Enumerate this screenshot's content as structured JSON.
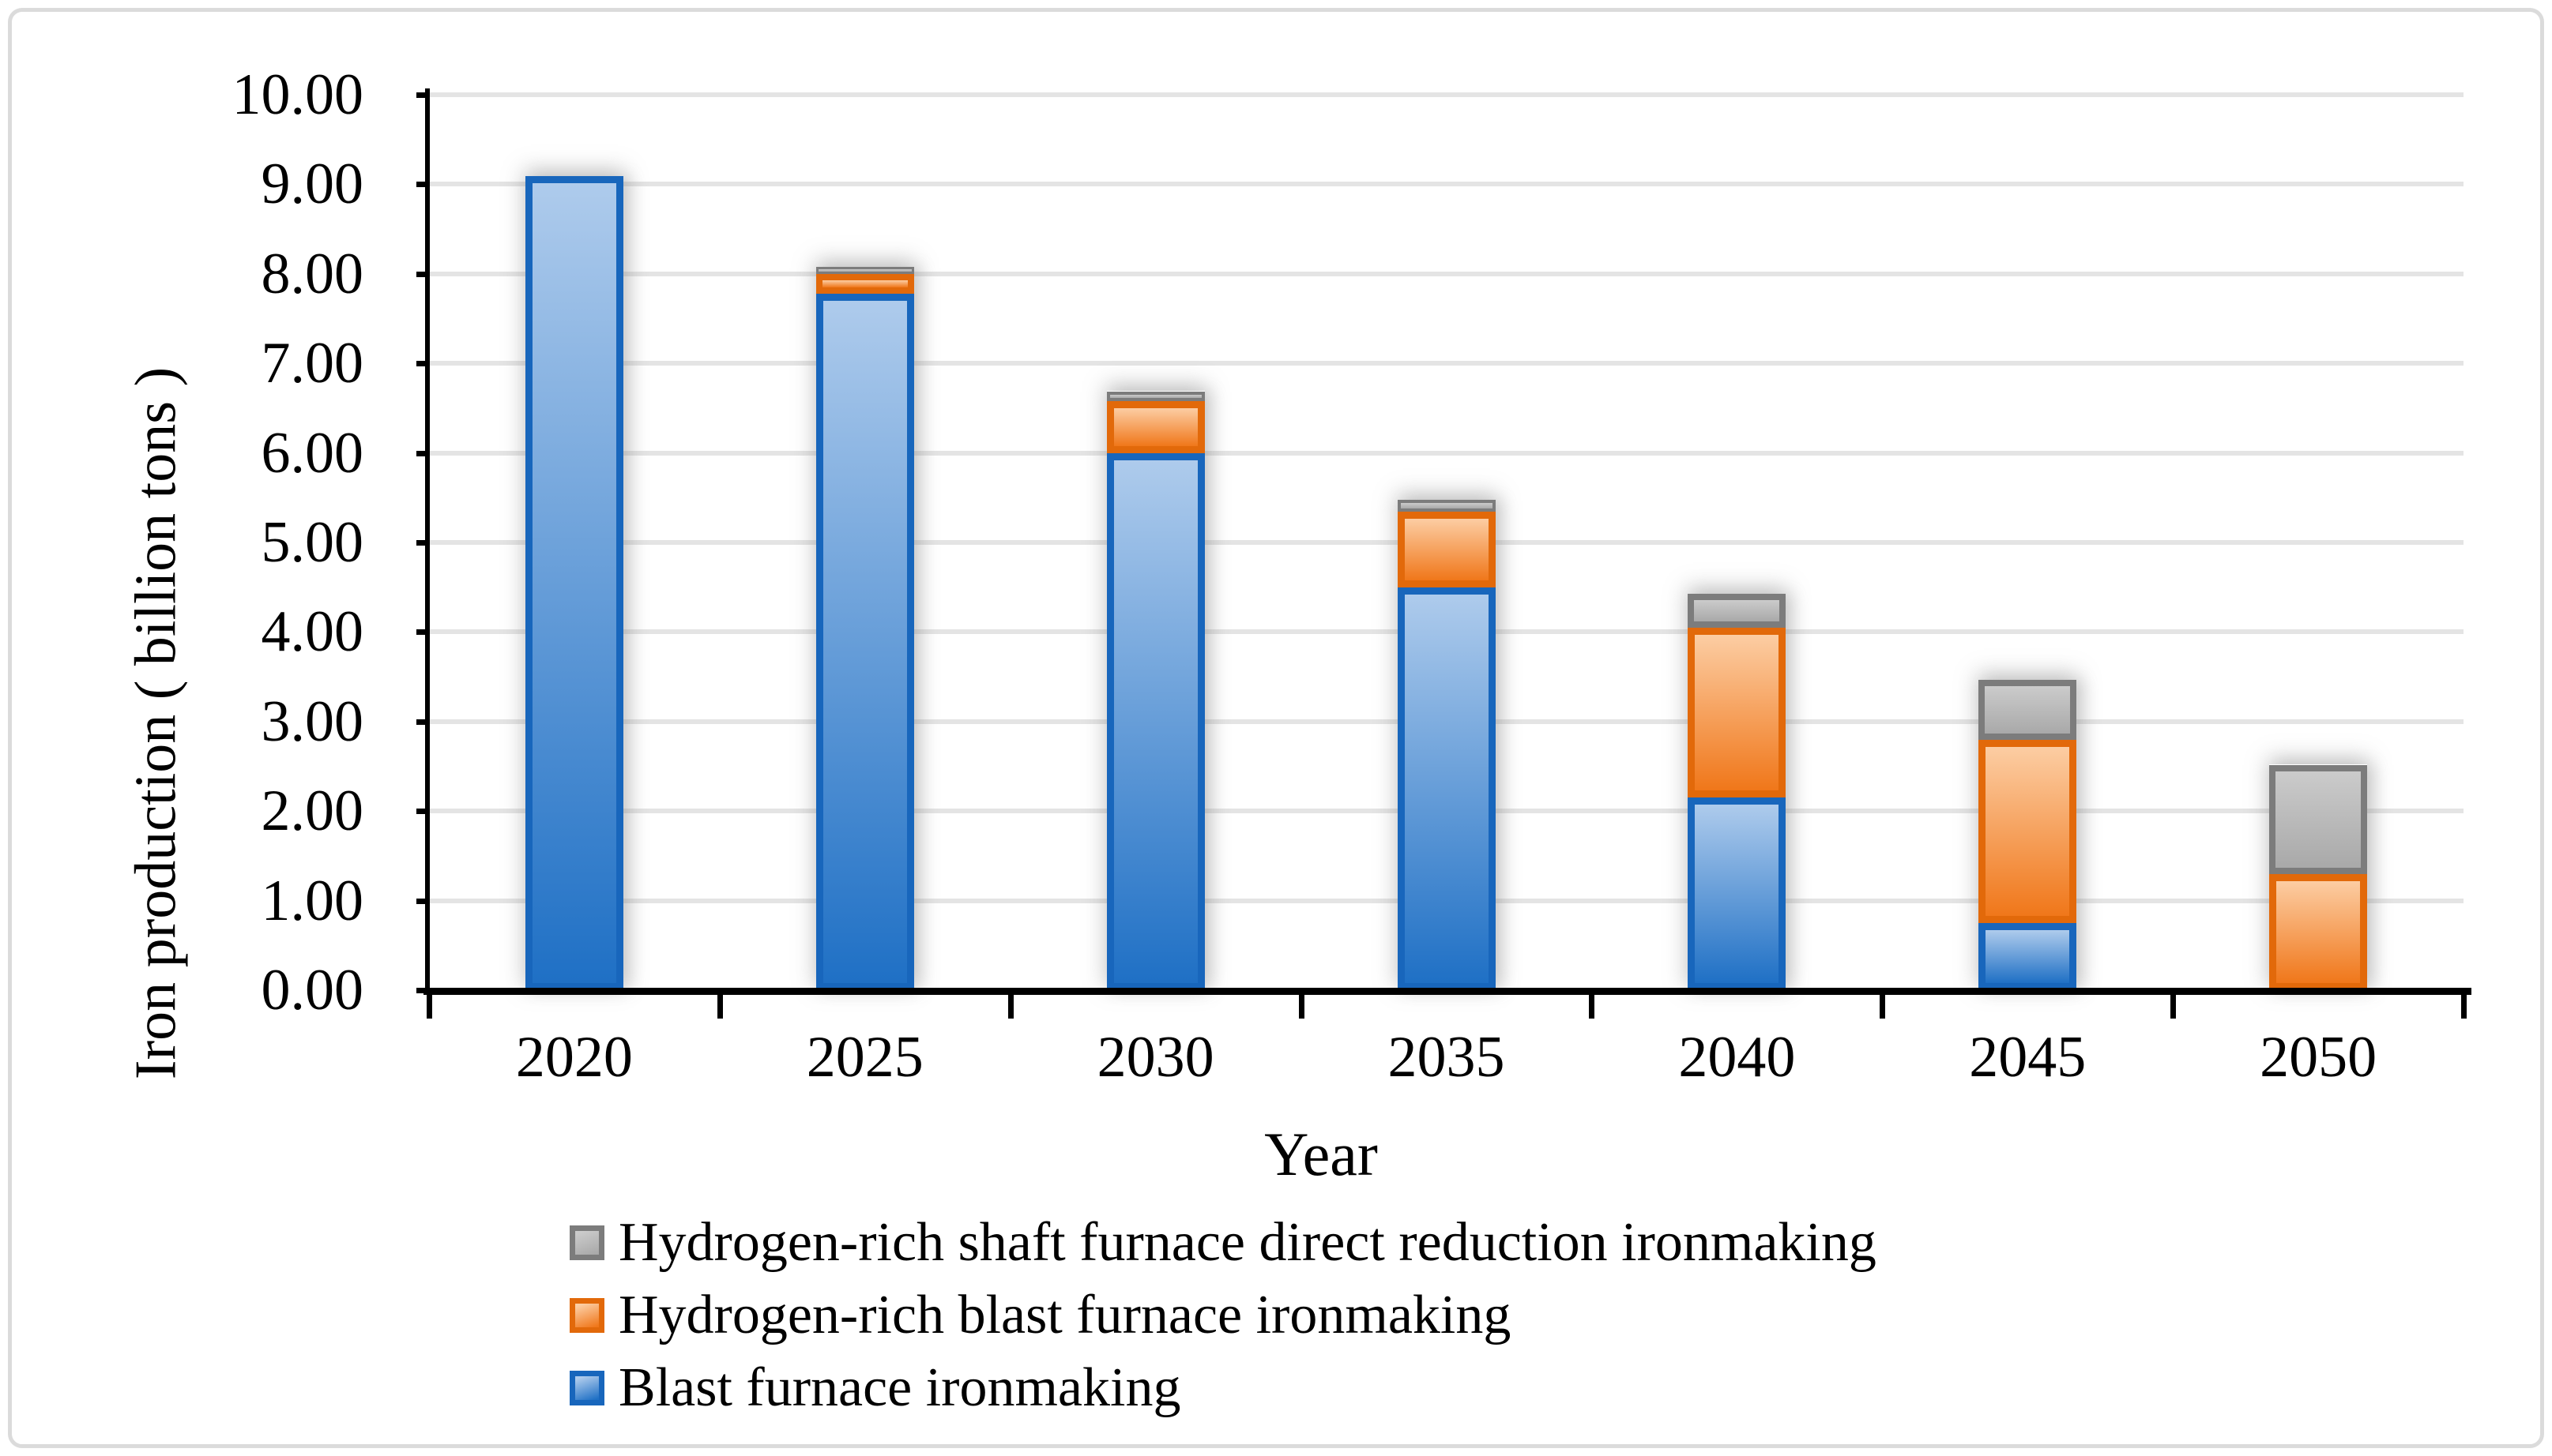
{
  "figure": {
    "background": "#FFFFFF",
    "border_color": "#DBDBDB"
  },
  "chart_data": {
    "type": "bar",
    "stacked": true,
    "title": "",
    "xlabel": "Year",
    "ylabel": "Iron production ( billion tons )",
    "categories": [
      "2020",
      "2025",
      "2030",
      "2035",
      "2040",
      "2045",
      "2050"
    ],
    "series": [
      {
        "name": "Blast furnace ironmaking",
        "values": [
          9.09,
          7.78,
          6.0,
          4.5,
          2.15,
          0.75,
          0.0
        ],
        "fill_top": "#AECBEC",
        "fill_bottom": "#1F70C5",
        "border": "#1866BC"
      },
      {
        "name": "Hydrogen-rich blast furnace ironmaking",
        "values": [
          0.0,
          0.22,
          0.58,
          0.85,
          1.9,
          2.05,
          1.3
        ],
        "fill_top": "#FCCDA3",
        "fill_bottom": "#F0771A",
        "border": "#E2690A"
      },
      {
        "name": "Hydrogen-rich shaft furnace direct reduction ironmaking",
        "values": [
          0.0,
          0.08,
          0.11,
          0.13,
          0.38,
          0.67,
          1.22
        ],
        "fill_top": "#CBCBCB",
        "fill_bottom": "#A9A9A9",
        "border": "#7C7C7C"
      }
    ],
    "ylim": [
      0,
      10
    ],
    "ytick_step": 1,
    "ytick_labels": [
      "0.00",
      "1.00",
      "2.00",
      "3.00",
      "4.00",
      "5.00",
      "6.00",
      "7.00",
      "8.00",
      "9.00",
      "10.00"
    ],
    "grid": true,
    "gridline_color": "#E4E4E4",
    "axis_color": "#000000",
    "text_color": "#000000",
    "legend_position": "bottom-left",
    "legend_order_top_to_bottom": [
      2,
      1,
      0
    ]
  }
}
